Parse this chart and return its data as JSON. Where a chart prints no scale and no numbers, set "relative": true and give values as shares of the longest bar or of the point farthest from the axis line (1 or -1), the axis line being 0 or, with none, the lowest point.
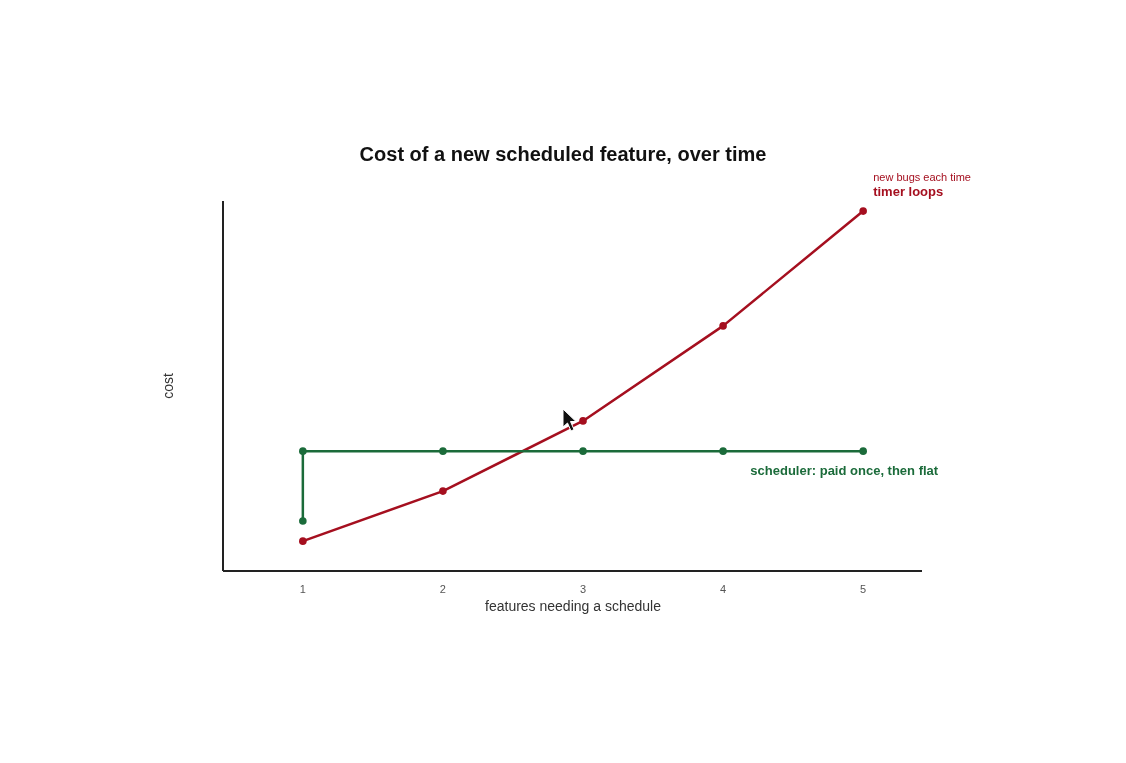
{
  "chart_data": {
    "type": "line",
    "title": "Cost of a new scheduled feature, over time",
    "xlabel": "features needing a schedule",
    "ylabel": "cost",
    "relative": true,
    "xlim": [
      0.43,
      5.42
    ],
    "xticks": [
      1,
      2,
      3,
      4,
      5
    ],
    "marker": "circle",
    "line_style": "solid",
    "grid": false,
    "series": [
      {
        "name": "timer loops",
        "color": "#a50f1f",
        "x": [
          1,
          2,
          3,
          4,
          5
        ],
        "values": [
          0.083,
          0.222,
          0.417,
          0.681,
          1
        ]
      },
      {
        "name": "scheduler: paid once, then flat",
        "color": "#1b6b3a",
        "x": [
          1,
          1,
          2,
          3,
          4,
          5
        ],
        "values": [
          0.139,
          0.333,
          0.333,
          0.333,
          0.333,
          0.333
        ]
      }
    ],
    "annotations": [
      "new bugs each time"
    ]
  }
}
